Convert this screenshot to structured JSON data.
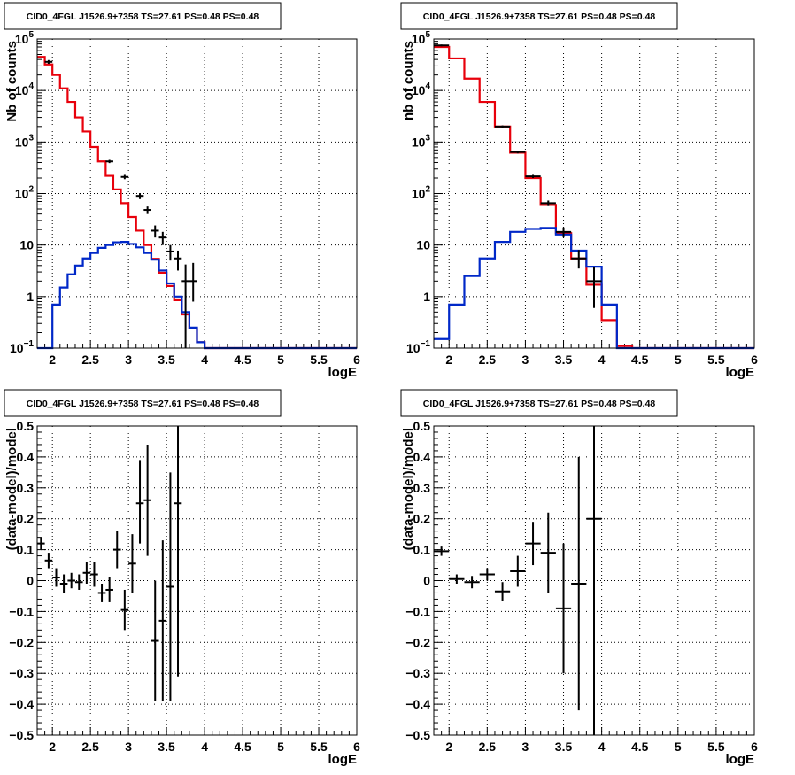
{
  "colors": {
    "data": "#000000",
    "model": "#e8000b",
    "source": "#0028c8",
    "grid": "#000000"
  },
  "chart_data": [
    {
      "type": "line",
      "title": "CID0_4FGL J1526.9+7358 TS=27.61 PS=0.48 PS=0.48",
      "xlabel": "logE",
      "ylabel": "Nb of counts",
      "xlim": [
        1.8,
        6.0
      ],
      "ylim": [
        0.1,
        100000
      ],
      "yscale": "log",
      "grid": true,
      "legend": "none",
      "xticks": [
        "2",
        "2.5",
        "3",
        "3.5",
        "4",
        "4.5",
        "5",
        "5.5",
        "6"
      ],
      "yticks": [
        {
          "value": 0.1,
          "base": "10",
          "exp": "−1"
        },
        {
          "value": 1,
          "label": "1"
        },
        {
          "value": 10,
          "label": "10"
        },
        {
          "value": 100,
          "base": "10",
          "exp": "2"
        },
        {
          "value": 1000,
          "base": "10",
          "exp": "3"
        },
        {
          "value": 10000,
          "base": "10",
          "exp": "4"
        },
        {
          "value": 100000,
          "base": "10",
          "exp": "5"
        }
      ],
      "bin_edges": [
        1.8,
        1.9,
        2.0,
        2.1,
        2.2,
        2.3,
        2.4,
        2.5,
        2.6,
        2.7,
        2.8,
        2.9,
        3.0,
        3.1,
        3.2,
        3.3,
        3.4,
        3.5,
        3.6,
        3.7,
        3.8,
        3.9,
        4.0,
        4.1,
        4.2,
        4.3,
        4.4,
        4.5,
        4.6,
        4.7,
        4.8,
        4.9,
        5.0,
        5.1,
        5.2,
        5.3,
        5.4,
        5.5,
        5.6,
        5.7,
        5.8,
        5.9,
        6.0
      ],
      "series": [
        {
          "role": "model",
          "values": [
            45000,
            32000,
            20000,
            11000,
            6000,
            3000,
            1600,
            800,
            420,
            220,
            120,
            65,
            35,
            19,
            10,
            5.4,
            2.9,
            1.6,
            0.85,
            0.45,
            0.24,
            0.13,
            0.1,
            0.1,
            0.1,
            0.1,
            0.1,
            0.1,
            0.1,
            0.1,
            0.1,
            0.1,
            0.1,
            0.1,
            0.1,
            0.1,
            0.1,
            0.1,
            0.1,
            0.1,
            0.1,
            0.1
          ]
        },
        {
          "role": "source",
          "values": [
            0.1,
            0.1,
            0.7,
            1.5,
            2.7,
            4.0,
            5.5,
            7.0,
            8.8,
            10.0,
            11.3,
            11.5,
            10.5,
            9.0,
            7.0,
            5.2,
            3.2,
            1.8,
            1.0,
            0.5,
            0.25,
            0.13,
            0.1,
            0.1,
            0.1,
            0.1,
            0.1,
            0.1,
            0.1,
            0.1,
            0.1,
            0.1,
            0.1,
            0.1,
            0.1,
            0.1,
            0.1,
            0.1,
            0.1,
            0.1,
            0.1,
            0.1
          ]
        },
        {
          "role": "data",
          "points": [
            {
              "x": 1.95,
              "y": 36000,
              "xerr": 0.05,
              "lo": 33000,
              "hi": 39000
            },
            {
              "x": 2.75,
              "y": 420,
              "xerr": 0.05,
              "lo": 390,
              "hi": 450
            },
            {
              "x": 2.95,
              "y": 210,
              "xerr": 0.05,
              "lo": 190,
              "hi": 230
            },
            {
              "x": 3.15,
              "y": 90,
              "xerr": 0.05,
              "lo": 78,
              "hi": 102
            },
            {
              "x": 3.25,
              "y": 48,
              "xerr": 0.05,
              "lo": 40,
              "hi": 56
            },
            {
              "x": 3.35,
              "y": 19,
              "xerr": 0.05,
              "lo": 14,
              "hi": 24
            },
            {
              "x": 3.45,
              "y": 14,
              "xerr": 0.05,
              "lo": 10,
              "hi": 18
            },
            {
              "x": 3.55,
              "y": 7.5,
              "xerr": 0.05,
              "lo": 5,
              "hi": 10
            },
            {
              "x": 3.65,
              "y": 5.5,
              "xerr": 0.05,
              "lo": 3.2,
              "hi": 7.8
            },
            {
              "x": 3.75,
              "y": 2.0,
              "xerr": 0.05,
              "lo": 0.1,
              "hi": 4.2
            },
            {
              "x": 3.85,
              "y": 2.0,
              "xerr": 0.05,
              "lo": 0.8,
              "hi": 4.5
            }
          ]
        }
      ]
    },
    {
      "type": "line",
      "title": "CID0_4FGL J1526.9+7358 TS=27.61 PS=0.48 PS=0.48",
      "xlabel": "logE",
      "ylabel": "nb of counts",
      "xlim": [
        1.8,
        6.0
      ],
      "ylim": [
        0.1,
        100000
      ],
      "yscale": "log",
      "grid": true,
      "legend": "none",
      "xticks": [
        "2",
        "2.5",
        "3",
        "3.5",
        "4",
        "4.5",
        "5",
        "5.5",
        "6"
      ],
      "yticks": [
        {
          "value": 0.1,
          "base": "10",
          "exp": "−1"
        },
        {
          "value": 1,
          "label": "1"
        },
        {
          "value": 10,
          "label": "10"
        },
        {
          "value": 100,
          "base": "10",
          "exp": "2"
        },
        {
          "value": 1000,
          "base": "10",
          "exp": "3"
        },
        {
          "value": 10000,
          "base": "10",
          "exp": "4"
        },
        {
          "value": 100000,
          "base": "10",
          "exp": "5"
        }
      ],
      "bin_edges": [
        1.8,
        2.0,
        2.2,
        2.4,
        2.6,
        2.8,
        3.0,
        3.2,
        3.4,
        3.6,
        3.8,
        4.0,
        4.2,
        4.4,
        4.6,
        4.8,
        5.0,
        5.2,
        5.4,
        5.6,
        5.8,
        6.0
      ],
      "series": [
        {
          "role": "model",
          "values": [
            70000,
            42000,
            17000,
            6000,
            2000,
            620,
            200,
            60,
            17,
            5.5,
            1.7,
            0.35,
            0.11,
            0.1,
            0.1,
            0.1,
            0.1,
            0.1,
            0.1,
            0.1,
            0.1
          ]
        },
        {
          "role": "source",
          "values": [
            0.15,
            0.7,
            2.5,
            5.5,
            11.5,
            18.0,
            20.5,
            21.5,
            16.0,
            7.8,
            3.8,
            0.7,
            0.1,
            0.1,
            0.1,
            0.1,
            0.1,
            0.1,
            0.1,
            0.1,
            0.1
          ]
        },
        {
          "role": "data",
          "points": [
            {
              "x": 1.9,
              "y": 75000,
              "xerr": 0.1,
              "lo": 72000,
              "hi": 78000
            },
            {
              "x": 2.7,
              "y": 2000,
              "xerr": 0.1,
              "lo": 1900,
              "hi": 2100
            },
            {
              "x": 2.9,
              "y": 640,
              "xerr": 0.1,
              "lo": 600,
              "hi": 680
            },
            {
              "x": 3.1,
              "y": 215,
              "xerr": 0.1,
              "lo": 200,
              "hi": 230
            },
            {
              "x": 3.3,
              "y": 65,
              "xerr": 0.1,
              "lo": 57,
              "hi": 73
            },
            {
              "x": 3.5,
              "y": 18,
              "xerr": 0.1,
              "lo": 14,
              "hi": 22
            },
            {
              "x": 3.7,
              "y": 5.5,
              "xerr": 0.1,
              "lo": 3.5,
              "hi": 8.0
            },
            {
              "x": 3.9,
              "y": 2.0,
              "xerr": 0.1,
              "lo": 0.6,
              "hi": 3.8
            }
          ]
        }
      ]
    },
    {
      "type": "scatter",
      "title": "CID0_4FGL J1526.9+7358 TS=27.61 PS=0.48 PS=0.48",
      "xlabel": "logE",
      "ylabel": "(data-model)/model",
      "xlim": [
        1.8,
        6.0
      ],
      "ylim": [
        -0.5,
        0.5
      ],
      "grid": true,
      "legend": "none",
      "xticks": [
        "2",
        "2.5",
        "3",
        "3.5",
        "4",
        "4.5",
        "5",
        "5.5",
        "6"
      ],
      "yticks": [
        "−0.5",
        "−0.4",
        "−0.3",
        "−0.2",
        "−0.1",
        "0",
        "0.1",
        "0.2",
        "0.3",
        "0.4",
        "0.5"
      ],
      "series": [
        {
          "role": "data",
          "points": [
            {
              "x": 1.85,
              "y": 0.12,
              "xerr": 0.05,
              "lo": 0.1,
              "hi": 0.14
            },
            {
              "x": 1.95,
              "y": 0.065,
              "xerr": 0.05,
              "lo": 0.04,
              "hi": 0.09
            },
            {
              "x": 2.05,
              "y": 0.01,
              "xerr": 0.05,
              "lo": -0.02,
              "hi": 0.04
            },
            {
              "x": 2.15,
              "y": -0.01,
              "xerr": 0.05,
              "lo": -0.04,
              "hi": 0.02
            },
            {
              "x": 2.25,
              "y": 0.0,
              "xerr": 0.05,
              "lo": -0.025,
              "hi": 0.025
            },
            {
              "x": 2.35,
              "y": -0.005,
              "xerr": 0.05,
              "lo": -0.03,
              "hi": 0.02
            },
            {
              "x": 2.45,
              "y": 0.025,
              "xerr": 0.05,
              "lo": -0.01,
              "hi": 0.06
            },
            {
              "x": 2.55,
              "y": 0.02,
              "xerr": 0.05,
              "lo": -0.02,
              "hi": 0.06
            },
            {
              "x": 2.65,
              "y": -0.04,
              "xerr": 0.05,
              "lo": -0.07,
              "hi": -0.01
            },
            {
              "x": 2.75,
              "y": -0.03,
              "xerr": 0.05,
              "lo": -0.07,
              "hi": 0.01
            },
            {
              "x": 2.85,
              "y": 0.1,
              "xerr": 0.05,
              "lo": 0.04,
              "hi": 0.16
            },
            {
              "x": 2.95,
              "y": -0.095,
              "xerr": 0.05,
              "lo": -0.16,
              "hi": -0.03
            },
            {
              "x": 3.05,
              "y": 0.055,
              "xerr": 0.05,
              "lo": -0.04,
              "hi": 0.15
            },
            {
              "x": 3.15,
              "y": 0.25,
              "xerr": 0.05,
              "lo": 0.12,
              "hi": 0.39
            },
            {
              "x": 3.25,
              "y": 0.26,
              "xerr": 0.05,
              "lo": 0.08,
              "hi": 0.44
            },
            {
              "x": 3.35,
              "y": -0.195,
              "xerr": 0.05,
              "lo": -0.39,
              "hi": -0.0
            },
            {
              "x": 3.45,
              "y": -0.13,
              "xerr": 0.05,
              "lo": -0.39,
              "hi": 0.13
            },
            {
              "x": 3.55,
              "y": -0.02,
              "xerr": 0.05,
              "lo": -0.39,
              "hi": 0.35
            },
            {
              "x": 3.65,
              "y": 0.25,
              "xerr": 0.05,
              "lo": -0.31,
              "hi": 0.5
            }
          ]
        }
      ]
    },
    {
      "type": "scatter",
      "title": "CID0_4FGL J1526.9+7358 TS=27.61 PS=0.48 PS=0.48",
      "xlabel": "logE",
      "ylabel": "(data-model)/model",
      "xlim": [
        1.8,
        6.0
      ],
      "ylim": [
        -0.5,
        0.5
      ],
      "grid": true,
      "legend": "none",
      "xticks": [
        "2",
        "2.5",
        "3",
        "3.5",
        "4",
        "4.5",
        "5",
        "5.5",
        "6"
      ],
      "yticks": [
        "−0.5",
        "−0.4",
        "−0.3",
        "−0.2",
        "−0.1",
        "0",
        "0.1",
        "0.2",
        "0.3",
        "0.4",
        "0.5"
      ],
      "series": [
        {
          "role": "data",
          "points": [
            {
              "x": 1.9,
              "y": 0.095,
              "xerr": 0.1,
              "lo": 0.08,
              "hi": 0.11
            },
            {
              "x": 2.1,
              "y": 0.005,
              "xerr": 0.1,
              "lo": -0.01,
              "hi": 0.02
            },
            {
              "x": 2.3,
              "y": -0.005,
              "xerr": 0.1,
              "lo": -0.025,
              "hi": 0.015
            },
            {
              "x": 2.5,
              "y": 0.02,
              "xerr": 0.1,
              "lo": 0.0,
              "hi": 0.04
            },
            {
              "x": 2.7,
              "y": -0.035,
              "xerr": 0.1,
              "lo": -0.065,
              "hi": -0.005
            },
            {
              "x": 2.9,
              "y": 0.03,
              "xerr": 0.1,
              "lo": -0.02,
              "hi": 0.08
            },
            {
              "x": 3.1,
              "y": 0.12,
              "xerr": 0.1,
              "lo": 0.05,
              "hi": 0.19
            },
            {
              "x": 3.3,
              "y": 0.09,
              "xerr": 0.1,
              "lo": -0.04,
              "hi": 0.22
            },
            {
              "x": 3.5,
              "y": -0.09,
              "xerr": 0.1,
              "lo": -0.3,
              "hi": 0.12
            },
            {
              "x": 3.7,
              "y": -0.01,
              "xerr": 0.1,
              "lo": -0.42,
              "hi": 0.4
            },
            {
              "x": 3.9,
              "y": 0.2,
              "xerr": 0.1,
              "lo": -0.5,
              "hi": 0.5
            }
          ]
        }
      ]
    }
  ]
}
